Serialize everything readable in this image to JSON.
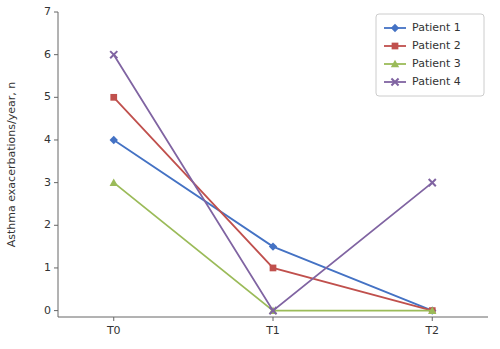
{
  "chart_data": {
    "type": "line",
    "categories": [
      "T0",
      "T1",
      "T2"
    ],
    "series": [
      {
        "name": "Patient 1",
        "color": "#4472C4",
        "marker": "diamond",
        "values": [
          4,
          1.5,
          0
        ]
      },
      {
        "name": "Patient 2",
        "color": "#C0504D",
        "marker": "square",
        "values": [
          5,
          1,
          0
        ]
      },
      {
        "name": "Patient 3",
        "color": "#9BBB59",
        "marker": "triangle",
        "values": [
          3,
          0,
          0
        ]
      },
      {
        "name": "Patient 4",
        "color": "#8064A2",
        "marker": "x",
        "values": [
          6,
          0,
          3
        ]
      }
    ],
    "y_label": "Asthma exacerbations/year, n",
    "ylim": [
      -0.15,
      7
    ],
    "yticks": [
      0,
      1,
      2,
      3,
      4,
      5,
      6,
      7
    ],
    "grid": false,
    "legend": "upper right"
  }
}
